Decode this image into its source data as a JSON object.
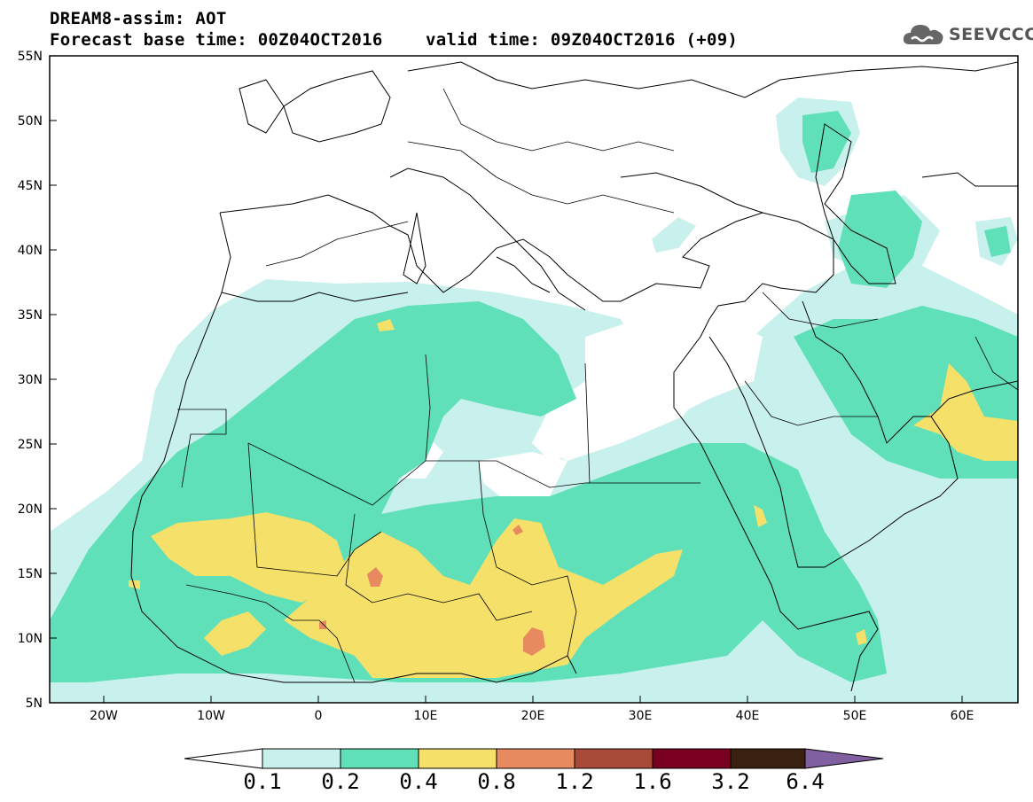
{
  "header": {
    "line1": "DREAM8-assim: AOT",
    "line2": "Forecast base time: 00Z04OCT2016",
    "line3": "valid time: 09Z04OCT2016 (+09)"
  },
  "logo": {
    "text": "SEEVCCC",
    "icon": "cloud-icon"
  },
  "map": {
    "lon_range": [
      -25,
      65
    ],
    "lat_range": [
      5,
      55
    ],
    "x_ticks": [
      "20W",
      "10W",
      "0",
      "10E",
      "20E",
      "30E",
      "40E",
      "50E",
      "60E"
    ],
    "y_ticks": [
      "55N",
      "50N",
      "45N",
      "40N",
      "35N",
      "30N",
      "25N",
      "20N",
      "15N",
      "10N",
      "5N"
    ]
  },
  "colorbar": {
    "labels": [
      "0.1",
      "0.2",
      "0.4",
      "0.8",
      "1.2",
      "1.6",
      "3.2",
      "6.4"
    ],
    "colors": [
      "#ffffff",
      "#c8f0ec",
      "#5fe0b8",
      "#f5e06a",
      "#e88a60",
      "#a84a38",
      "#7a0020",
      "#3a2010",
      "#8060a0"
    ]
  }
}
